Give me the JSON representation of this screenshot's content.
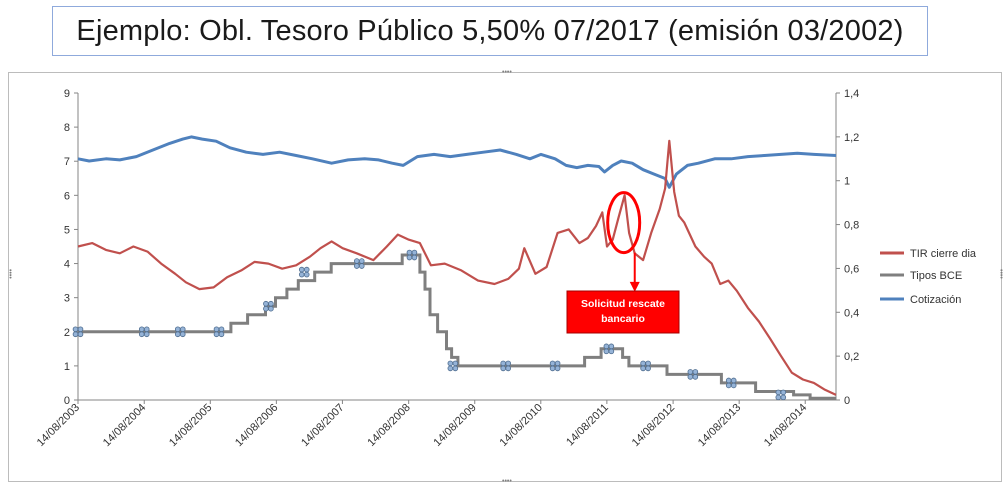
{
  "title": "Ejemplo: Obl. Tesoro Público 5,50% 07/2017 (emisión 03/2002)",
  "chart_data": {
    "type": "line",
    "x_range": [
      "2003-08-14",
      "2015-01-31"
    ],
    "x_ticks": [
      "14/08/2003",
      "14/08/2004",
      "14/08/2005",
      "14/08/2006",
      "14/08/2007",
      "14/08/2008",
      "14/08/2009",
      "14/08/2010",
      "14/08/2011",
      "14/08/2012",
      "14/08/2013",
      "14/08/2014"
    ],
    "y_left": {
      "ylim": [
        0,
        9
      ],
      "ticks": [
        "0",
        "1",
        "2",
        "3",
        "4",
        "5",
        "6",
        "7",
        "8",
        "9"
      ]
    },
    "y_right": {
      "ylim": [
        0,
        1.4
      ],
      "ticks": [
        "0",
        "0,2",
        "0,4",
        "0,6",
        "0,8",
        "1",
        "1,2",
        "1,4"
      ]
    },
    "grid": false,
    "legend_position": "right",
    "series": [
      {
        "name": "TIR cierre dia",
        "color": "#c0504d",
        "axis": "left",
        "points": [
          [
            "2003-08-14",
            4.5
          ],
          [
            "2003-11-01",
            4.6
          ],
          [
            "2004-01-15",
            4.4
          ],
          [
            "2004-04-01",
            4.3
          ],
          [
            "2004-06-15",
            4.5
          ],
          [
            "2004-09-01",
            4.35
          ],
          [
            "2004-11-15",
            4.0
          ],
          [
            "2005-02-01",
            3.7
          ],
          [
            "2005-04-01",
            3.45
          ],
          [
            "2005-06-15",
            3.25
          ],
          [
            "2005-09-01",
            3.3
          ],
          [
            "2005-11-15",
            3.6
          ],
          [
            "2006-02-01",
            3.8
          ],
          [
            "2006-04-15",
            4.05
          ],
          [
            "2006-07-01",
            4.0
          ],
          [
            "2006-09-15",
            3.85
          ],
          [
            "2006-12-01",
            3.95
          ],
          [
            "2007-02-15",
            4.2
          ],
          [
            "2007-04-15",
            4.45
          ],
          [
            "2007-06-15",
            4.65
          ],
          [
            "2007-08-15",
            4.45
          ],
          [
            "2007-11-01",
            4.3
          ],
          [
            "2008-02-01",
            4.1
          ],
          [
            "2008-04-15",
            4.5
          ],
          [
            "2008-06-15",
            4.85
          ],
          [
            "2008-08-15",
            4.7
          ],
          [
            "2008-10-15",
            4.6
          ],
          [
            "2008-12-15",
            3.95
          ],
          [
            "2009-03-01",
            4.0
          ],
          [
            "2009-06-01",
            3.8
          ],
          [
            "2009-09-01",
            3.5
          ],
          [
            "2009-12-01",
            3.4
          ],
          [
            "2010-02-15",
            3.55
          ],
          [
            "2010-04-15",
            3.85
          ],
          [
            "2010-05-15",
            4.45
          ],
          [
            "2010-07-15",
            3.7
          ],
          [
            "2010-09-15",
            3.9
          ],
          [
            "2010-11-15",
            4.9
          ],
          [
            "2011-01-15",
            5.0
          ],
          [
            "2011-03-15",
            4.6
          ],
          [
            "2011-05-01",
            4.75
          ],
          [
            "2011-06-15",
            5.1
          ],
          [
            "2011-07-20",
            5.5
          ],
          [
            "2011-08-15",
            4.5
          ],
          [
            "2011-09-15",
            4.7
          ],
          [
            "2011-10-15",
            5.3
          ],
          [
            "2011-11-20",
            6.0
          ],
          [
            "2011-12-15",
            4.9
          ],
          [
            "2012-01-15",
            4.3
          ],
          [
            "2012-03-01",
            4.1
          ],
          [
            "2012-04-15",
            4.9
          ],
          [
            "2012-06-01",
            5.6
          ],
          [
            "2012-07-01",
            6.2
          ],
          [
            "2012-07-24",
            7.6
          ],
          [
            "2012-08-20",
            6.1
          ],
          [
            "2012-09-15",
            5.4
          ],
          [
            "2012-10-15",
            5.2
          ],
          [
            "2012-12-15",
            4.5
          ],
          [
            "2013-02-01",
            4.2
          ],
          [
            "2013-03-15",
            4.0
          ],
          [
            "2013-05-01",
            3.4
          ],
          [
            "2013-06-15",
            3.5
          ],
          [
            "2013-08-01",
            3.2
          ],
          [
            "2013-10-01",
            2.7
          ],
          [
            "2013-12-01",
            2.3
          ],
          [
            "2014-02-01",
            1.8
          ],
          [
            "2014-04-01",
            1.3
          ],
          [
            "2014-06-01",
            0.8
          ],
          [
            "2014-08-01",
            0.6
          ],
          [
            "2014-10-01",
            0.5
          ],
          [
            "2014-12-01",
            0.3
          ],
          [
            "2015-01-31",
            0.15
          ]
        ]
      },
      {
        "name": "Tipos BCE",
        "color": "#7f7f7f",
        "axis": "left",
        "points": [
          [
            "2003-08-14",
            2.0
          ],
          [
            "2005-12-06",
            2.0
          ],
          [
            "2005-12-06",
            2.25
          ],
          [
            "2006-03-08",
            2.25
          ],
          [
            "2006-03-08",
            2.5
          ],
          [
            "2006-06-15",
            2.5
          ],
          [
            "2006-06-15",
            2.75
          ],
          [
            "2006-08-09",
            2.75
          ],
          [
            "2006-08-09",
            3.0
          ],
          [
            "2006-10-11",
            3.0
          ],
          [
            "2006-10-11",
            3.25
          ],
          [
            "2006-12-13",
            3.25
          ],
          [
            "2006-12-13",
            3.5
          ],
          [
            "2007-03-14",
            3.5
          ],
          [
            "2007-03-14",
            3.75
          ],
          [
            "2007-06-13",
            3.75
          ],
          [
            "2007-06-13",
            4.0
          ],
          [
            "2008-07-09",
            4.0
          ],
          [
            "2008-07-09",
            4.25
          ],
          [
            "2008-10-15",
            4.25
          ],
          [
            "2008-10-15",
            3.75
          ],
          [
            "2008-11-12",
            3.75
          ],
          [
            "2008-11-12",
            3.25
          ],
          [
            "2008-12-10",
            3.25
          ],
          [
            "2008-12-10",
            2.5
          ],
          [
            "2009-01-21",
            2.5
          ],
          [
            "2009-01-21",
            2.0
          ],
          [
            "2009-03-11",
            2.0
          ],
          [
            "2009-03-11",
            1.5
          ],
          [
            "2009-04-08",
            1.5
          ],
          [
            "2009-04-08",
            1.25
          ],
          [
            "2009-05-13",
            1.25
          ],
          [
            "2009-05-13",
            1.0
          ],
          [
            "2011-04-13",
            1.0
          ],
          [
            "2011-04-13",
            1.25
          ],
          [
            "2011-07-13",
            1.25
          ],
          [
            "2011-07-13",
            1.5
          ],
          [
            "2011-11-09",
            1.5
          ],
          [
            "2011-11-09",
            1.25
          ],
          [
            "2011-12-14",
            1.25
          ],
          [
            "2011-12-14",
            1.0
          ],
          [
            "2012-07-11",
            1.0
          ],
          [
            "2012-07-11",
            0.75
          ],
          [
            "2013-05-08",
            0.75
          ],
          [
            "2013-05-08",
            0.5
          ],
          [
            "2013-11-13",
            0.5
          ],
          [
            "2013-11-13",
            0.25
          ],
          [
            "2014-06-11",
            0.25
          ],
          [
            "2014-06-11",
            0.15
          ],
          [
            "2014-09-10",
            0.15
          ],
          [
            "2014-09-10",
            0.05
          ],
          [
            "2015-01-31",
            0.05
          ]
        ],
        "markers": [
          [
            "2003-08-14",
            2.0
          ],
          [
            "2004-08-14",
            2.0
          ],
          [
            "2005-03-01",
            2.0
          ],
          [
            "2005-10-01",
            2.0
          ],
          [
            "2006-07-01",
            2.75
          ],
          [
            "2007-01-15",
            3.75
          ],
          [
            "2007-11-15",
            4.0
          ],
          [
            "2008-09-01",
            4.25
          ],
          [
            "2009-04-15",
            1.0
          ],
          [
            "2010-02-01",
            1.0
          ],
          [
            "2010-11-01",
            1.0
          ],
          [
            "2011-08-25",
            1.5
          ],
          [
            "2012-03-15",
            1.0
          ],
          [
            "2012-12-01",
            0.75
          ],
          [
            "2013-07-01",
            0.5
          ],
          [
            "2014-04-01",
            0.15
          ]
        ]
      },
      {
        "name": "Cotización",
        "color": "#4f81bd",
        "axis": "right",
        "points": [
          [
            "2003-08-14",
            1.1
          ],
          [
            "2003-10-15",
            1.09
          ],
          [
            "2004-01-15",
            1.1
          ],
          [
            "2004-04-01",
            1.095
          ],
          [
            "2004-07-01",
            1.11
          ],
          [
            "2004-10-01",
            1.14
          ],
          [
            "2005-01-01",
            1.17
          ],
          [
            "2005-03-15",
            1.19
          ],
          [
            "2005-05-01",
            1.2
          ],
          [
            "2005-07-01",
            1.19
          ],
          [
            "2005-09-15",
            1.18
          ],
          [
            "2005-12-01",
            1.15
          ],
          [
            "2006-03-01",
            1.13
          ],
          [
            "2006-06-01",
            1.12
          ],
          [
            "2006-09-01",
            1.13
          ],
          [
            "2006-12-01",
            1.115
          ],
          [
            "2007-03-01",
            1.1
          ],
          [
            "2007-06-15",
            1.08
          ],
          [
            "2007-09-15",
            1.095
          ],
          [
            "2007-12-15",
            1.1
          ],
          [
            "2008-03-01",
            1.095
          ],
          [
            "2008-05-15",
            1.08
          ],
          [
            "2008-07-15",
            1.07
          ],
          [
            "2008-10-01",
            1.11
          ],
          [
            "2009-01-01",
            1.12
          ],
          [
            "2009-04-01",
            1.11
          ],
          [
            "2009-07-01",
            1.12
          ],
          [
            "2009-10-01",
            1.13
          ],
          [
            "2010-01-01",
            1.14
          ],
          [
            "2010-04-01",
            1.12
          ],
          [
            "2010-06-15",
            1.1
          ],
          [
            "2010-08-15",
            1.12
          ],
          [
            "2010-11-01",
            1.1
          ],
          [
            "2011-01-01",
            1.07
          ],
          [
            "2011-03-01",
            1.06
          ],
          [
            "2011-05-01",
            1.07
          ],
          [
            "2011-07-01",
            1.065
          ],
          [
            "2011-08-01",
            1.04
          ],
          [
            "2011-09-15",
            1.07
          ],
          [
            "2011-11-01",
            1.09
          ],
          [
            "2012-01-01",
            1.08
          ],
          [
            "2012-03-01",
            1.05
          ],
          [
            "2012-05-01",
            1.03
          ],
          [
            "2012-07-01",
            1.01
          ],
          [
            "2012-07-24",
            0.97
          ],
          [
            "2012-09-01",
            1.03
          ],
          [
            "2012-11-01",
            1.07
          ],
          [
            "2013-01-01",
            1.08
          ],
          [
            "2013-04-01",
            1.1
          ],
          [
            "2013-07-01",
            1.1
          ],
          [
            "2013-10-01",
            1.11
          ],
          [
            "2014-01-01",
            1.115
          ],
          [
            "2014-04-01",
            1.12
          ],
          [
            "2014-07-01",
            1.125
          ],
          [
            "2014-10-01",
            1.12
          ],
          [
            "2015-01-31",
            1.115
          ]
        ]
      }
    ],
    "annotation": {
      "text_lines": [
        "Solicitud rescate",
        "bancario"
      ],
      "ellipse_center": [
        "2011-11-15",
        5.2
      ],
      "arrow_to": [
        "2012-01-15",
        3.2
      ],
      "ellipse_color": "#ff0000",
      "box_color": "#ff0000"
    }
  }
}
